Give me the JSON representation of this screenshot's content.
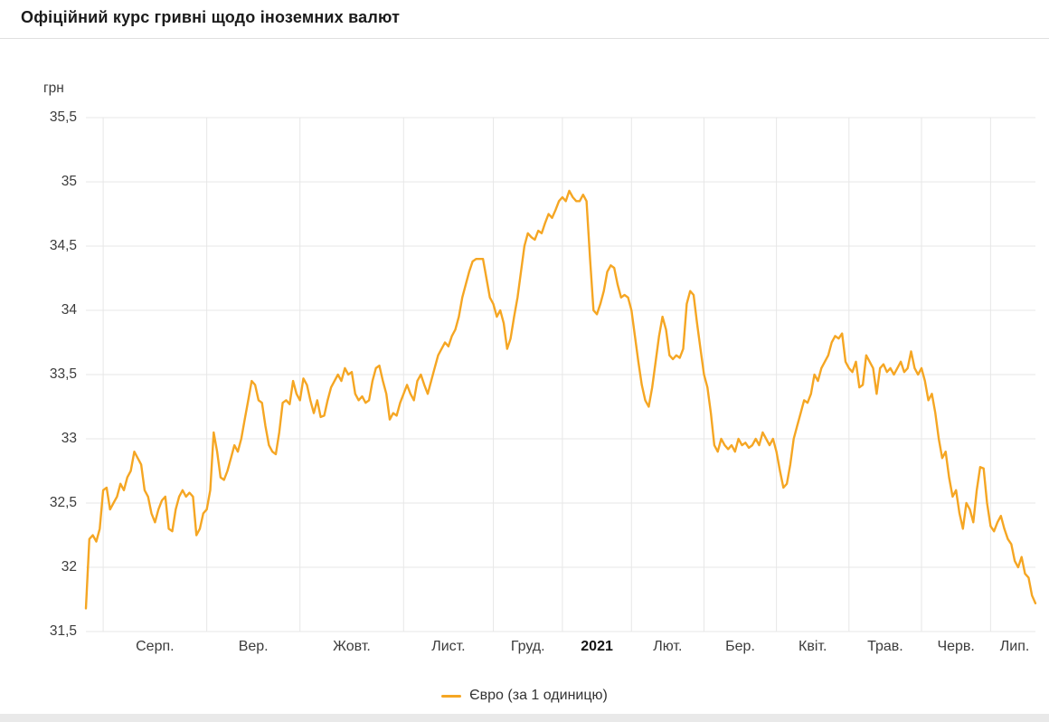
{
  "header": {
    "title": "Офіційний курс гривні щодо іноземних валют"
  },
  "chart_data": {
    "type": "line",
    "title": "Офіційний курс гривні щодо іноземних валют",
    "xlabel": "",
    "ylabel": "грн",
    "ylim": [
      31.5,
      35.5
    ],
    "grid": true,
    "legend_position": "bottom",
    "line_color": "#F5A623",
    "ytick_values": [
      35.5,
      35,
      34.5,
      34,
      33.5,
      33,
      32.5,
      32,
      31.5
    ],
    "ytick_labels": [
      "35,5",
      "35",
      "34,5",
      "34",
      "33,5",
      "33",
      "32,5",
      "32",
      "31,5"
    ],
    "xticklabels": [
      "Серп.",
      "Вер.",
      "Жовт.",
      "Лист.",
      "Груд.",
      "2021",
      "Лют.",
      "Бер.",
      "Квіт.",
      "Трав.",
      "Черв.",
      "Лип."
    ],
    "months": [
      {
        "label": "",
        "points": 5
      },
      {
        "label": "Серп.",
        "points": 30
      },
      {
        "label": "Вер.",
        "points": 27
      },
      {
        "label": "Жовт.",
        "points": 30
      },
      {
        "label": "Лист.",
        "points": 26
      },
      {
        "label": "Груд.",
        "points": 20
      },
      {
        "label": "2021",
        "points": 20,
        "bold": true
      },
      {
        "label": "Лют.",
        "points": 21
      },
      {
        "label": "Бер.",
        "points": 21
      },
      {
        "label": "Квіт.",
        "points": 21
      },
      {
        "label": "Трав.",
        "points": 21
      },
      {
        "label": "Черв.",
        "points": 20
      },
      {
        "label": "Лип.",
        "points": 14
      }
    ],
    "series": [
      {
        "name": "Євро (за 1 одиницю)",
        "color": "#F5A623",
        "values": [
          31.68,
          32.22,
          32.25,
          32.2,
          32.3,
          32.6,
          32.62,
          32.45,
          32.5,
          32.55,
          32.65,
          32.6,
          32.7,
          32.75,
          32.9,
          32.85,
          32.8,
          32.6,
          32.55,
          32.42,
          32.35,
          32.45,
          32.52,
          32.55,
          32.3,
          32.28,
          32.45,
          32.55,
          32.6,
          32.55,
          32.58,
          32.55,
          32.25,
          32.3,
          32.42,
          32.45,
          32.6,
          33.05,
          32.9,
          32.7,
          32.68,
          32.75,
          32.85,
          32.95,
          32.9,
          33.0,
          33.15,
          33.3,
          33.45,
          33.42,
          33.3,
          33.28,
          33.1,
          32.95,
          32.9,
          32.88,
          33.05,
          33.28,
          33.3,
          33.27,
          33.45,
          33.35,
          33.3,
          33.47,
          33.42,
          33.3,
          33.2,
          33.3,
          33.17,
          33.18,
          33.3,
          33.4,
          33.45,
          33.5,
          33.45,
          33.55,
          33.5,
          33.52,
          33.35,
          33.3,
          33.33,
          33.28,
          33.3,
          33.45,
          33.55,
          33.57,
          33.45,
          33.35,
          33.15,
          33.2,
          33.18,
          33.28,
          33.35,
          33.42,
          33.35,
          33.3,
          33.45,
          33.5,
          33.42,
          33.35,
          33.45,
          33.55,
          33.65,
          33.7,
          33.75,
          33.72,
          33.8,
          33.85,
          33.95,
          34.1,
          34.2,
          34.3,
          34.38,
          34.4,
          34.4,
          34.4,
          34.25,
          34.1,
          34.05,
          33.95,
          34.0,
          33.9,
          33.7,
          33.78,
          33.95,
          34.1,
          34.3,
          34.5,
          34.6,
          34.57,
          34.55,
          34.62,
          34.6,
          34.68,
          34.75,
          34.72,
          34.78,
          34.85,
          34.88,
          34.85,
          34.93,
          34.88,
          34.85,
          34.85,
          34.9,
          34.85,
          34.4,
          34.0,
          33.97,
          34.05,
          34.15,
          34.3,
          34.35,
          34.33,
          34.2,
          34.1,
          34.12,
          34.1,
          34.0,
          33.8,
          33.6,
          33.42,
          33.3,
          33.25,
          33.4,
          33.6,
          33.8,
          33.95,
          33.85,
          33.65,
          33.62,
          33.65,
          33.63,
          33.7,
          34.05,
          34.15,
          34.12,
          33.9,
          33.7,
          33.5,
          33.4,
          33.2,
          32.95,
          32.9,
          33.0,
          32.95,
          32.92,
          32.95,
          32.9,
          33.0,
          32.95,
          32.97,
          32.93,
          32.95,
          33.0,
          32.95,
          33.05,
          33.0,
          32.95,
          33.0,
          32.9,
          32.75,
          32.62,
          32.65,
          32.8,
          33.0,
          33.1,
          33.2,
          33.3,
          33.28,
          33.35,
          33.5,
          33.45,
          33.55,
          33.6,
          33.65,
          33.75,
          33.8,
          33.78,
          33.82,
          33.6,
          33.55,
          33.52,
          33.6,
          33.4,
          33.42,
          33.65,
          33.6,
          33.55,
          33.35,
          33.55,
          33.58,
          33.52,
          33.55,
          33.5,
          33.55,
          33.6,
          33.52,
          33.55,
          33.68,
          33.55,
          33.5,
          33.55,
          33.45,
          33.3,
          33.35,
          33.2,
          33.0,
          32.85,
          32.9,
          32.7,
          32.55,
          32.6,
          32.42,
          32.3,
          32.5,
          32.45,
          32.35,
          32.6,
          32.78,
          32.77,
          32.5,
          32.32,
          32.28,
          32.35,
          32.4,
          32.3,
          32.22,
          32.18,
          32.05,
          32.0,
          32.08,
          31.95,
          31.92,
          31.78,
          31.72
        ]
      }
    ]
  }
}
